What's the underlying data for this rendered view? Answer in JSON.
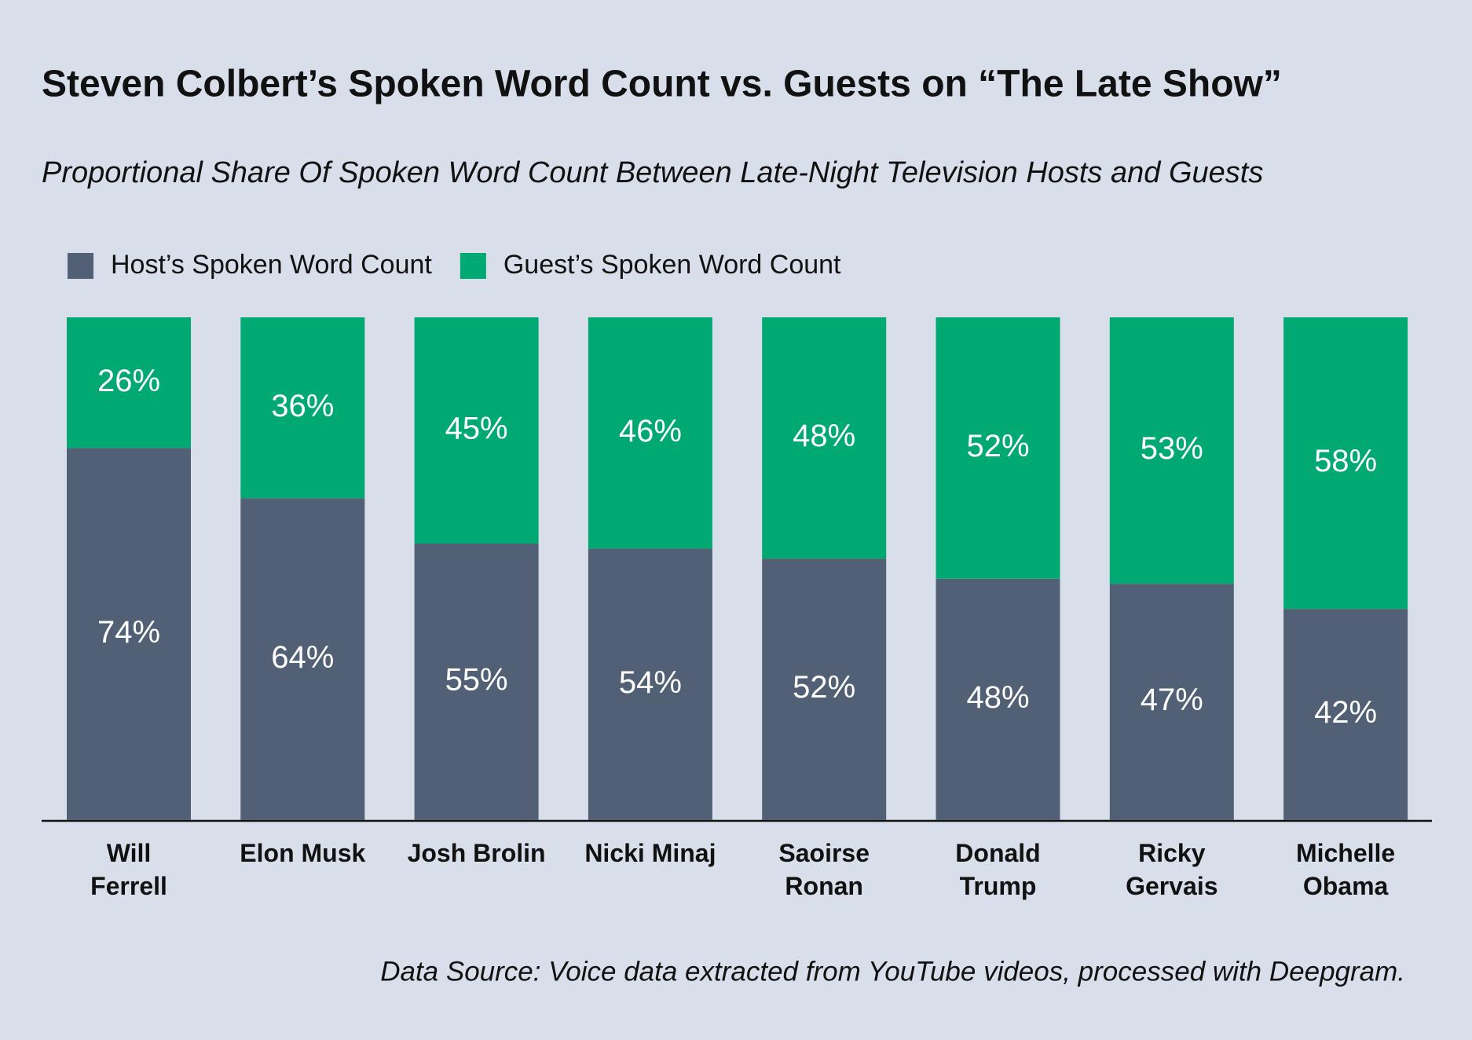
{
  "chart_data": {
    "type": "stacked_bar",
    "title": "Steven Colbert’s Spoken Word Count vs. Guests on “The Late Show”",
    "subtitle": "Proportional Share Of Spoken Word Count Between Late-Night Television Hosts and Guests",
    "source": "Data Source: Voice data extracted from YouTube videos, processed with Deepgram.",
    "categories": [
      "Will\nFerrell",
      "Elon Musk",
      "Josh Brolin",
      "Nicki Minaj",
      "Saoirse\nRonan",
      "Donald\nTrump",
      "Ricky\nGervais",
      "Michelle\nObama"
    ],
    "series": [
      {
        "name": "Host’s Spoken Word Count",
        "color": "#526075",
        "values": [
          74,
          64,
          55,
          54,
          52,
          48,
          47,
          42
        ],
        "value_labels": [
          "74%",
          "64%",
          "55%",
          "54%",
          "52%",
          "48%",
          "47%",
          "42%"
        ]
      },
      {
        "name": "Guest’s Spoken Word Count",
        "color": "#00a972",
        "values": [
          26,
          36,
          45,
          46,
          48,
          52,
          53,
          58
        ],
        "value_labels": [
          "26%",
          "36%",
          "45%",
          "46%",
          "48%",
          "52%",
          "53%",
          "58%"
        ]
      }
    ],
    "ylim": [
      0,
      100
    ],
    "legend": "top-left"
  }
}
